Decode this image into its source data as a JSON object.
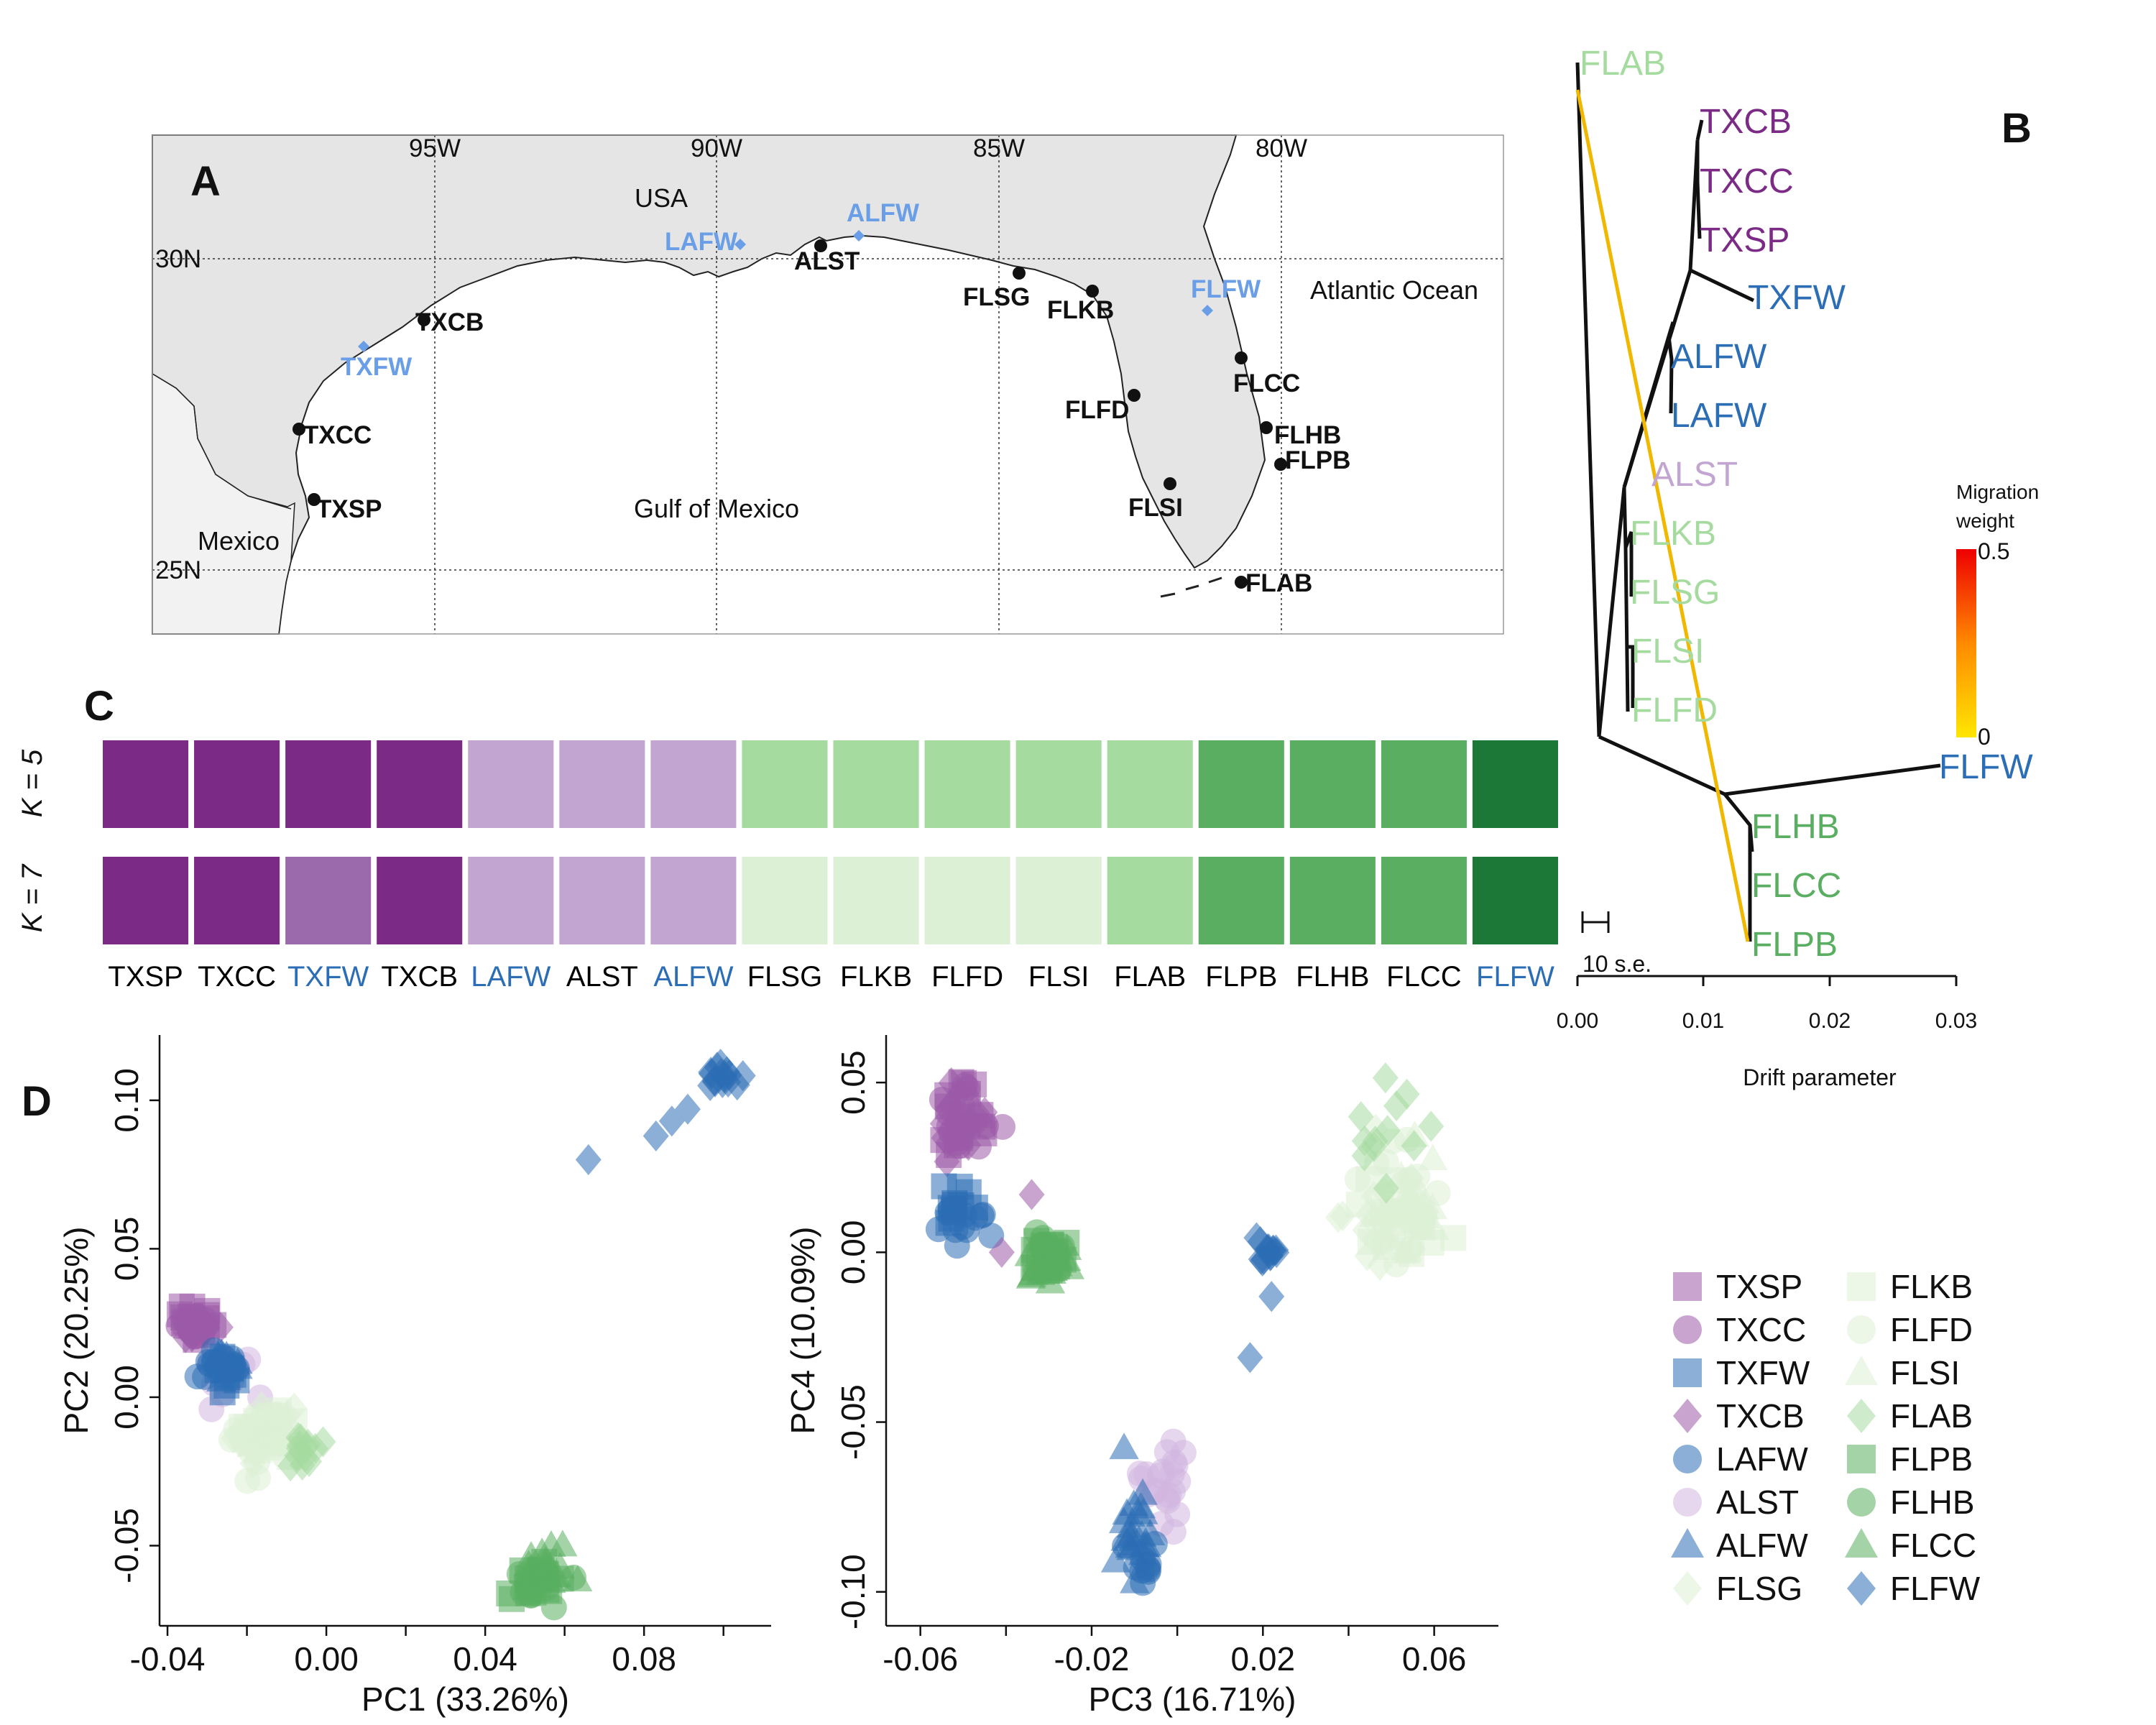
{
  "panel_labels": {
    "a": "A",
    "b": "B",
    "c": "C",
    "d": "D"
  },
  "map": {
    "lon_labels": [
      "95W",
      "90W",
      "85W",
      "80W"
    ],
    "lat_labels": [
      "30N",
      "25N"
    ],
    "region_labels": {
      "usa": "USA",
      "mexico": "Mexico",
      "gulf": "Gulf of Mexico",
      "atlantic": "Atlantic Ocean"
    },
    "sites_black": [
      "TXCB",
      "TXCC",
      "TXSP",
      "ALST",
      "FLSG",
      "FLKB",
      "FLFD",
      "FLSI",
      "FLCC",
      "FLHB",
      "FLPB",
      "FLAB"
    ],
    "sites_blue": [
      "TXFW",
      "LAFW",
      "ALFW",
      "FLFW"
    ]
  },
  "structure": {
    "k_labels": [
      "K = 5",
      "K = 7"
    ],
    "populations": [
      {
        "label": "TXSP",
        "label_color": "#000000",
        "k5": "#7b2a86",
        "k7": "#7b2a86"
      },
      {
        "label": "TXCC",
        "label_color": "#000000",
        "k5": "#7b2a86",
        "k7": "#7b2a86"
      },
      {
        "label": "TXFW",
        "label_color": "#2c6eb5",
        "k5": "#7b2a86",
        "k7": "#9a6aad"
      },
      {
        "label": "TXCB",
        "label_color": "#000000",
        "k5": "#7b2a86",
        "k7": "#7b2a86"
      },
      {
        "label": "LAFW",
        "label_color": "#2c6eb5",
        "k5": "#c2a6d1",
        "k7": "#c2a6d1"
      },
      {
        "label": "ALST",
        "label_color": "#000000",
        "k5": "#c2a6d1",
        "k7": "#c2a6d1"
      },
      {
        "label": "ALFW",
        "label_color": "#2c6eb5",
        "k5": "#c2a6d1",
        "k7": "#c2a6d1"
      },
      {
        "label": "FLSG",
        "label_color": "#000000",
        "k5": "#a6dba0",
        "k7": "#dcf0d6"
      },
      {
        "label": "FLKB",
        "label_color": "#000000",
        "k5": "#a6dba0",
        "k7": "#dcf0d6"
      },
      {
        "label": "FLFD",
        "label_color": "#000000",
        "k5": "#a6dba0",
        "k7": "#dcf0d6"
      },
      {
        "label": "FLSI",
        "label_color": "#000000",
        "k5": "#a6dba0",
        "k7": "#dcf0d6"
      },
      {
        "label": "FLAB",
        "label_color": "#000000",
        "k5": "#a6dba0",
        "k7": "#a6dba0"
      },
      {
        "label": "FLPB",
        "label_color": "#000000",
        "k5": "#5aae61",
        "k7": "#5aae61"
      },
      {
        "label": "FLHB",
        "label_color": "#000000",
        "k5": "#5aae61",
        "k7": "#5aae61"
      },
      {
        "label": "FLCC",
        "label_color": "#000000",
        "k5": "#5aae61",
        "k7": "#5aae61"
      },
      {
        "label": "FLFW",
        "label_color": "#2c6eb5",
        "k5": "#1b7837",
        "k7": "#1b7837"
      }
    ]
  },
  "treemix": {
    "tips": [
      {
        "label": "FLAB",
        "color": "#a6dba0"
      },
      {
        "label": "TXCB",
        "color": "#7b2a86"
      },
      {
        "label": "TXCC",
        "color": "#7b2a86"
      },
      {
        "label": "TXSP",
        "color": "#7b2a86"
      },
      {
        "label": "TXFW",
        "color": "#2c6eb5"
      },
      {
        "label": "ALFW",
        "color": "#2c6eb5"
      },
      {
        "label": "LAFW",
        "color": "#2c6eb5"
      },
      {
        "label": "ALST",
        "color": "#c2a6d1"
      },
      {
        "label": "FLKB",
        "color": "#a6dba0"
      },
      {
        "label": "FLSG",
        "color": "#a6dba0"
      },
      {
        "label": "FLSI",
        "color": "#a6dba0"
      },
      {
        "label": "FLFD",
        "color": "#a6dba0"
      },
      {
        "label": "FLFW",
        "color": "#2c6eb5"
      },
      {
        "label": "FLHB",
        "color": "#5aae61"
      },
      {
        "label": "FLCC",
        "color": "#5aae61"
      },
      {
        "label": "FLPB",
        "color": "#5aae61"
      }
    ],
    "xlabel": "Drift parameter",
    "x_ticks": [
      "0.00",
      "0.01",
      "0.02",
      "0.03"
    ],
    "scale_label": "10 s.e.",
    "migration_title": [
      "Migration",
      "weight"
    ],
    "migration_ticks": [
      "0.5",
      "0"
    ]
  },
  "chart_data": [
    {
      "type": "scatter",
      "id": "pc1-pc2",
      "xlabel": "PC1 (33.26%)",
      "ylabel": "PC2 (20.25%)",
      "xlim": [
        -0.042,
        0.112
      ],
      "ylim": [
        -0.077,
        0.122
      ],
      "x_ticks": [
        -0.04,
        0.0,
        0.04,
        0.08
      ],
      "x_tick_labels": [
        "-0.04",
        "0.00",
        "0.04",
        "0.08"
      ],
      "y_ticks": [
        -0.05,
        0.0,
        0.05,
        0.1
      ],
      "y_tick_labels": [
        "-0.05",
        "0.00",
        "0.05",
        "0.10"
      ],
      "clusters": [
        {
          "pop": "TXSP",
          "shape": "square",
          "color": "#9b59a8",
          "cx": -0.033,
          "cy": 0.025,
          "sx": 0.002,
          "sy": 0.003,
          "n": 16
        },
        {
          "pop": "TXCC",
          "shape": "circle",
          "color": "#9b59a8",
          "cx": -0.034,
          "cy": 0.024,
          "sx": 0.002,
          "sy": 0.003,
          "n": 16
        },
        {
          "pop": "TXCB",
          "shape": "diamond",
          "color": "#9b59a8",
          "cx": -0.032,
          "cy": 0.023,
          "sx": 0.002,
          "sy": 0.003,
          "n": 14
        },
        {
          "pop": "ALST",
          "shape": "circle",
          "color": "#d2b6e0",
          "cx": -0.026,
          "cy": 0.006,
          "sx": 0.003,
          "sy": 0.004,
          "n": 12
        },
        {
          "pop": "TXFW",
          "shape": "square",
          "color": "#2c6eb5",
          "cx": -0.025,
          "cy": 0.01,
          "sx": 0.002,
          "sy": 0.003,
          "n": 12
        },
        {
          "pop": "LAFW",
          "shape": "circle",
          "color": "#2c6eb5",
          "cx": -0.025,
          "cy": 0.011,
          "sx": 0.003,
          "sy": 0.003,
          "n": 14
        },
        {
          "pop": "ALFW",
          "shape": "triangle",
          "color": "#2c6eb5",
          "cx": -0.026,
          "cy": 0.01,
          "sx": 0.002,
          "sy": 0.003,
          "n": 10
        },
        {
          "pop": "FLSG",
          "shape": "diamond",
          "color": "#dcf0d6",
          "cx": -0.015,
          "cy": -0.012,
          "sx": 0.004,
          "sy": 0.005,
          "n": 16
        },
        {
          "pop": "FLKB",
          "shape": "square",
          "color": "#dcf0d6",
          "cx": -0.016,
          "cy": -0.013,
          "sx": 0.004,
          "sy": 0.005,
          "n": 14
        },
        {
          "pop": "FLFD",
          "shape": "circle",
          "color": "#dcf0d6",
          "cx": -0.017,
          "cy": -0.014,
          "sx": 0.004,
          "sy": 0.005,
          "n": 14
        },
        {
          "pop": "FLSI",
          "shape": "triangle",
          "color": "#dcf0d6",
          "cx": -0.014,
          "cy": -0.014,
          "sx": 0.004,
          "sy": 0.005,
          "n": 12
        },
        {
          "pop": "FLAB",
          "shape": "diamond",
          "color": "#a6dba0",
          "cx": -0.006,
          "cy": -0.018,
          "sx": 0.002,
          "sy": 0.003,
          "n": 14
        },
        {
          "pop": "FLPB",
          "shape": "square",
          "color": "#5aae61",
          "cx": 0.052,
          "cy": -0.061,
          "sx": 0.003,
          "sy": 0.004,
          "n": 18
        },
        {
          "pop": "FLHB",
          "shape": "circle",
          "color": "#5aae61",
          "cx": 0.053,
          "cy": -0.062,
          "sx": 0.003,
          "sy": 0.004,
          "n": 18
        },
        {
          "pop": "FLCC",
          "shape": "triangle",
          "color": "#5aae61",
          "cx": 0.054,
          "cy": -0.058,
          "sx": 0.003,
          "sy": 0.005,
          "n": 18
        },
        {
          "pop": "FLFW",
          "shape": "diamond",
          "color": "#2c6eb5",
          "cx": 0.1,
          "cy": 0.108,
          "sx": 0.002,
          "sy": 0.002,
          "n": 16
        }
      ],
      "points": [
        {
          "pop": "FLFW",
          "shape": "diamond",
          "color": "#2c6eb5",
          "x": 0.066,
          "y": 0.08
        },
        {
          "pop": "FLFW",
          "shape": "diamond",
          "color": "#2c6eb5",
          "x": 0.083,
          "y": 0.088
        },
        {
          "pop": "FLFW",
          "shape": "diamond",
          "color": "#2c6eb5",
          "x": 0.087,
          "y": 0.093
        },
        {
          "pop": "FLFW",
          "shape": "diamond",
          "color": "#2c6eb5",
          "x": 0.091,
          "y": 0.097
        }
      ]
    },
    {
      "type": "scatter",
      "id": "pc3-pc4",
      "xlabel": "PC3 (16.71%)",
      "ylabel": "PC4 (10.09%)",
      "xlim": [
        -0.068,
        0.075
      ],
      "ylim": [
        -0.11,
        0.064
      ],
      "x_ticks": [
        -0.06,
        -0.02,
        0.02,
        0.06
      ],
      "x_tick_labels": [
        "-0.06",
        "-0.02",
        "0.02",
        "0.06"
      ],
      "y_ticks": [
        -0.1,
        -0.05,
        0.0,
        0.05
      ],
      "y_tick_labels": [
        "-0.10",
        "-0.05",
        "0.00",
        "0.05"
      ],
      "clusters": [
        {
          "pop": "TXSP",
          "shape": "square",
          "color": "#9b59a8",
          "cx": -0.051,
          "cy": 0.043,
          "sx": 0.003,
          "sy": 0.006,
          "n": 18
        },
        {
          "pop": "TXCC",
          "shape": "circle",
          "color": "#9b59a8",
          "cx": -0.049,
          "cy": 0.04,
          "sx": 0.003,
          "sy": 0.006,
          "n": 18
        },
        {
          "pop": "TXCB",
          "shape": "diamond",
          "color": "#9b59a8",
          "cx": -0.05,
          "cy": 0.036,
          "sx": 0.003,
          "sy": 0.007,
          "n": 14
        },
        {
          "pop": "TXFW",
          "shape": "square",
          "color": "#2c6eb5",
          "cx": -0.053,
          "cy": 0.012,
          "sx": 0.003,
          "sy": 0.004,
          "n": 12
        },
        {
          "pop": "LAFW",
          "shape": "circle",
          "color": "#2c6eb5",
          "cx": -0.05,
          "cy": 0.008,
          "sx": 0.003,
          "sy": 0.004,
          "n": 12
        },
        {
          "pop": "FLPB",
          "shape": "square",
          "color": "#5aae61",
          "cx": -0.029,
          "cy": -0.001,
          "sx": 0.003,
          "sy": 0.003,
          "n": 16
        },
        {
          "pop": "FLHB",
          "shape": "circle",
          "color": "#5aae61",
          "cx": -0.03,
          "cy": -0.002,
          "sx": 0.003,
          "sy": 0.003,
          "n": 16
        },
        {
          "pop": "FLCC",
          "shape": "triangle",
          "color": "#5aae61",
          "cx": -0.031,
          "cy": -0.004,
          "sx": 0.003,
          "sy": 0.003,
          "n": 14
        },
        {
          "pop": "FLFW",
          "shape": "diamond",
          "color": "#2c6eb5",
          "cx": 0.021,
          "cy": 0.0,
          "sx": 0.0015,
          "sy": 0.002,
          "n": 14
        },
        {
          "pop": "FLSG",
          "shape": "diamond",
          "color": "#dcf0d6",
          "cx": 0.05,
          "cy": 0.01,
          "sx": 0.005,
          "sy": 0.01,
          "n": 18
        },
        {
          "pop": "FLKB",
          "shape": "square",
          "color": "#dcf0d6",
          "cx": 0.052,
          "cy": 0.008,
          "sx": 0.005,
          "sy": 0.01,
          "n": 16
        },
        {
          "pop": "FLFD",
          "shape": "circle",
          "color": "#dcf0d6",
          "cx": 0.053,
          "cy": 0.012,
          "sx": 0.005,
          "sy": 0.01,
          "n": 16
        },
        {
          "pop": "FLSI",
          "shape": "triangle",
          "color": "#dcf0d6",
          "cx": 0.055,
          "cy": 0.015,
          "sx": 0.005,
          "sy": 0.01,
          "n": 16
        },
        {
          "pop": "FLAB",
          "shape": "diamond",
          "color": "#a6dba0",
          "cx": 0.05,
          "cy": 0.035,
          "sx": 0.004,
          "sy": 0.007,
          "n": 12
        },
        {
          "pop": "ALST",
          "shape": "circle",
          "color": "#d2b6e0",
          "cx": -0.003,
          "cy": -0.065,
          "sx": 0.003,
          "sy": 0.009,
          "n": 22
        },
        {
          "pop": "ALFW",
          "shape": "triangle",
          "color": "#2c6eb5",
          "cx": -0.01,
          "cy": -0.08,
          "sx": 0.002,
          "sy": 0.007,
          "n": 22
        },
        {
          "pop": "LAFW",
          "shape": "circle",
          "color": "#2c6eb5",
          "cx": -0.008,
          "cy": -0.09,
          "sx": 0.002,
          "sy": 0.005,
          "n": 10
        }
      ],
      "points": [
        {
          "pop": "TXCB",
          "shape": "diamond",
          "color": "#9b59a8",
          "x": -0.034,
          "y": 0.017
        },
        {
          "pop": "TXCB",
          "shape": "diamond",
          "color": "#9b59a8",
          "x": -0.041,
          "y": 0.0
        },
        {
          "pop": "FLFW",
          "shape": "diamond",
          "color": "#2c6eb5",
          "x": 0.022,
          "y": -0.013
        },
        {
          "pop": "FLFW",
          "shape": "diamond",
          "color": "#2c6eb5",
          "x": 0.017,
          "y": -0.031
        }
      ]
    }
  ],
  "legend": {
    "items": [
      {
        "label": "TXSP",
        "shape": "square",
        "color": "#9b59a8"
      },
      {
        "label": "TXCC",
        "shape": "circle",
        "color": "#9b59a8"
      },
      {
        "label": "TXFW",
        "shape": "square",
        "color": "#2c6eb5"
      },
      {
        "label": "TXCB",
        "shape": "diamond",
        "color": "#9b59a8"
      },
      {
        "label": "LAFW",
        "shape": "circle",
        "color": "#2c6eb5"
      },
      {
        "label": "ALST",
        "shape": "circle",
        "color": "#d2b6e0"
      },
      {
        "label": "ALFW",
        "shape": "triangle",
        "color": "#2c6eb5"
      },
      {
        "label": "FLSG",
        "shape": "diamond",
        "color": "#dcf0d6"
      },
      {
        "label": "FLKB",
        "shape": "square",
        "color": "#dcf0d6"
      },
      {
        "label": "FLFD",
        "shape": "circle",
        "color": "#dcf0d6"
      },
      {
        "label": "FLSI",
        "shape": "triangle",
        "color": "#dcf0d6"
      },
      {
        "label": "FLAB",
        "shape": "diamond",
        "color": "#a6dba0"
      },
      {
        "label": "FLPB",
        "shape": "square",
        "color": "#5aae61"
      },
      {
        "label": "FLHB",
        "shape": "circle",
        "color": "#5aae61"
      },
      {
        "label": "FLCC",
        "shape": "triangle",
        "color": "#5aae61"
      },
      {
        "label": "FLFW",
        "shape": "diamond",
        "color": "#2c6eb5"
      }
    ]
  }
}
